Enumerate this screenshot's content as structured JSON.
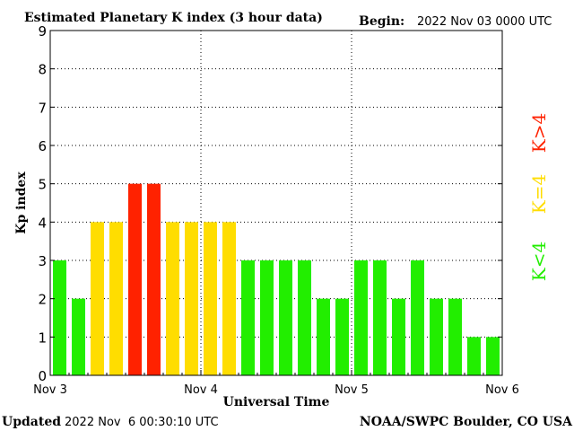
{
  "chart_data": {
    "type": "bar",
    "title": "Estimated Planetary K index (3 hour data)",
    "begin_label": "Begin:",
    "begin_value": "2022 Nov 03 0000 UTC",
    "ylabel": "Kp index",
    "xlabel": "Universal Time",
    "ylim": [
      0,
      9
    ],
    "yticks": [
      "0",
      "1",
      "2",
      "3",
      "4",
      "5",
      "6",
      "7",
      "8",
      "9"
    ],
    "xtick_labels": [
      "Nov 3",
      "Nov 4",
      "Nov 5",
      "Nov 6"
    ],
    "grid": "dotted",
    "values": [
      3,
      2,
      4,
      4,
      5,
      5,
      4,
      4,
      4,
      4,
      3,
      3,
      3,
      3,
      2,
      2,
      3,
      3,
      2,
      3,
      2,
      2,
      1,
      1
    ],
    "colors": {
      "low": "#22ee00",
      "equal": "#ffdd00",
      "high": "#ff2200"
    },
    "legend": {
      "low": "K<4",
      "equal": "K=4",
      "high": "K>4"
    }
  },
  "footer": {
    "updated_label": "Updated",
    "updated_value": "2022 Nov  6 00:30:10 UTC",
    "source": "NOAA/SWPC Boulder, CO USA"
  }
}
